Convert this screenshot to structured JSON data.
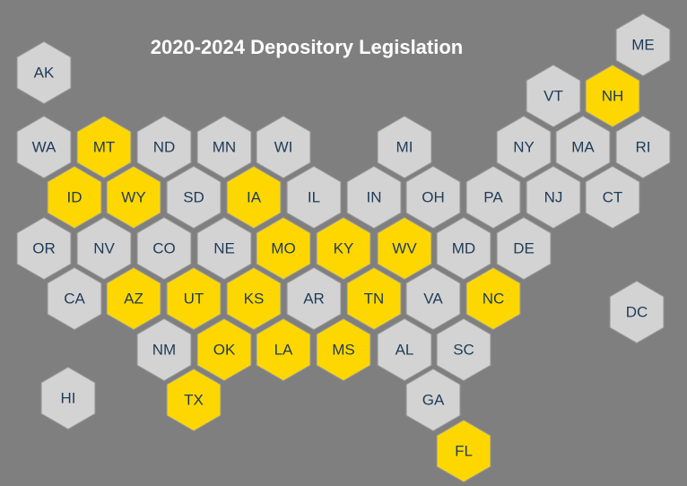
{
  "title": "2020-2024 Depository Legislation",
  "colors": {
    "background": "#7f7f7f",
    "hex_default": "#d3d3d3",
    "hex_highlight": "#ffd700",
    "hex_stroke": "#9a9a9a",
    "label": "#1f3b57",
    "title": "#ffffff"
  },
  "states": [
    {
      "abbr": "AK",
      "highlighted": false
    },
    {
      "abbr": "ME",
      "highlighted": false
    },
    {
      "abbr": "VT",
      "highlighted": false
    },
    {
      "abbr": "NH",
      "highlighted": true
    },
    {
      "abbr": "WA",
      "highlighted": false
    },
    {
      "abbr": "MT",
      "highlighted": true
    },
    {
      "abbr": "ND",
      "highlighted": false
    },
    {
      "abbr": "MN",
      "highlighted": false
    },
    {
      "abbr": "WI",
      "highlighted": false
    },
    {
      "abbr": "MI",
      "highlighted": false
    },
    {
      "abbr": "NY",
      "highlighted": false
    },
    {
      "abbr": "MA",
      "highlighted": false
    },
    {
      "abbr": "RI",
      "highlighted": false
    },
    {
      "abbr": "ID",
      "highlighted": true
    },
    {
      "abbr": "WY",
      "highlighted": true
    },
    {
      "abbr": "SD",
      "highlighted": false
    },
    {
      "abbr": "IA",
      "highlighted": true
    },
    {
      "abbr": "IL",
      "highlighted": false
    },
    {
      "abbr": "IN",
      "highlighted": false
    },
    {
      "abbr": "OH",
      "highlighted": false
    },
    {
      "abbr": "PA",
      "highlighted": false
    },
    {
      "abbr": "NJ",
      "highlighted": false
    },
    {
      "abbr": "CT",
      "highlighted": false
    },
    {
      "abbr": "OR",
      "highlighted": false
    },
    {
      "abbr": "NV",
      "highlighted": false
    },
    {
      "abbr": "CO",
      "highlighted": false
    },
    {
      "abbr": "NE",
      "highlighted": false
    },
    {
      "abbr": "MO",
      "highlighted": true
    },
    {
      "abbr": "KY",
      "highlighted": true
    },
    {
      "abbr": "WV",
      "highlighted": true
    },
    {
      "abbr": "MD",
      "highlighted": false
    },
    {
      "abbr": "DE",
      "highlighted": false
    },
    {
      "abbr": "CA",
      "highlighted": false
    },
    {
      "abbr": "AZ",
      "highlighted": true
    },
    {
      "abbr": "UT",
      "highlighted": true
    },
    {
      "abbr": "KS",
      "highlighted": true
    },
    {
      "abbr": "AR",
      "highlighted": false
    },
    {
      "abbr": "TN",
      "highlighted": true
    },
    {
      "abbr": "VA",
      "highlighted": false
    },
    {
      "abbr": "NC",
      "highlighted": true
    },
    {
      "abbr": "DC",
      "highlighted": false
    },
    {
      "abbr": "NM",
      "highlighted": false
    },
    {
      "abbr": "OK",
      "highlighted": true
    },
    {
      "abbr": "LA",
      "highlighted": true
    },
    {
      "abbr": "MS",
      "highlighted": true
    },
    {
      "abbr": "AL",
      "highlighted": false
    },
    {
      "abbr": "SC",
      "highlighted": false
    },
    {
      "abbr": "HI",
      "highlighted": false
    },
    {
      "abbr": "TX",
      "highlighted": true
    },
    {
      "abbr": "GA",
      "highlighted": false
    },
    {
      "abbr": "FL",
      "highlighted": true
    }
  ]
}
